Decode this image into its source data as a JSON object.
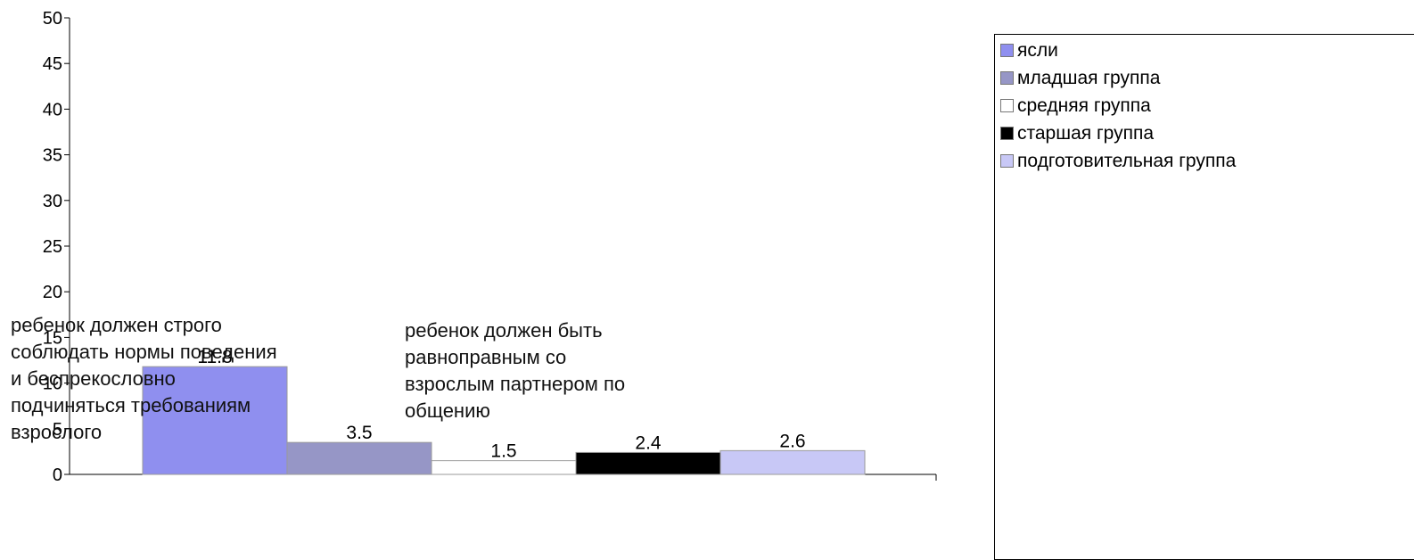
{
  "chart_data": {
    "type": "bar",
    "title": "",
    "xlabel": "",
    "ylabel": "",
    "ylim": [
      0,
      50
    ],
    "yticks": [
      0,
      5,
      10,
      15,
      20,
      25,
      30,
      35,
      40,
      45,
      50
    ],
    "grid": false,
    "legend_position": "right",
    "categories": [
      "ребенок должен строго соблюдать нормы поведения и беспрекословно подчиняться требованиям взрослого",
      "ребенок должен быть равноправным со взрослым партнером по общению"
    ],
    "category_label_lines": [
      [
        "ребенок должен строго",
        "соблюдать нормы поведения",
        "и беспрекословно",
        "подчиняться требованиям",
        "взрослого"
      ],
      [
        "ребенок должен быть",
        "равноправным со",
        "взрослым партнером по",
        "общению"
      ]
    ],
    "series": [
      {
        "name": "ясли",
        "color": "#8f8fef",
        "values": [
          11.8,
          null
        ]
      },
      {
        "name": "младшая группа",
        "color": "#9696c6",
        "values": [
          3.5,
          null
        ]
      },
      {
        "name": "средняя группа",
        "color": "#ffffff",
        "values": [
          1.5,
          null
        ]
      },
      {
        "name": "старшая группа",
        "color": "#000000",
        "values": [
          2.4,
          null
        ]
      },
      {
        "name": "подготовительная группа",
        "color": "#c8c8f6",
        "values": [
          2.6,
          null
        ]
      }
    ],
    "value_labels": [
      "11.8",
      "3.5",
      "1.5",
      "2.4",
      "2.6"
    ]
  }
}
